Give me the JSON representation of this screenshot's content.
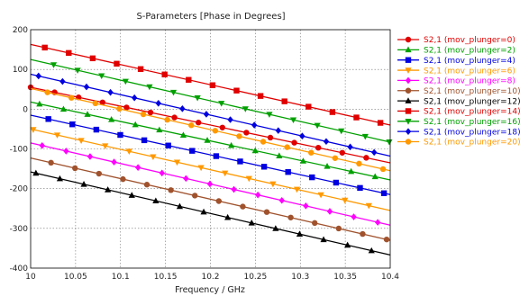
{
  "chart_data": {
    "type": "line",
    "title": "S-Parameters [Phase in Degrees]",
    "xlabel": "Frequency / GHz",
    "ylabel": "",
    "xlim": [
      10,
      10.4
    ],
    "ylim": [
      -400,
      200
    ],
    "xticks": [
      "10",
      "10.05",
      "10.1",
      "10.15",
      "10.2",
      "10.25",
      "10.3",
      "10.35",
      "10.4"
    ],
    "yticks": [
      "200",
      "100",
      "0",
      "-100",
      "-200",
      "-300",
      "-400"
    ],
    "grid": true,
    "legend_position": "right",
    "series": [
      {
        "name": "S2,1 (mov_plunger=0)",
        "color": "#e00000",
        "marker": "circle",
        "x": [
          10,
          10.4
        ],
        "y": [
          55,
          -135
        ]
      },
      {
        "name": "S2,1 (mov_plunger=2)",
        "color": "#00a000",
        "marker": "triangle-up",
        "x": [
          10,
          10.4
        ],
        "y": [
          18,
          -178
        ]
      },
      {
        "name": "S2,1 (mov_plunger=4)",
        "color": "#0000e0",
        "marker": "square",
        "x": [
          10,
          10.4
        ],
        "y": [
          -15,
          -215
        ]
      },
      {
        "name": "S2,1 (mov_plunger=6)",
        "color": "#ff9900",
        "marker": "triangle-down",
        "x": [
          10,
          10.4
        ],
        "y": [
          -50,
          -255
        ]
      },
      {
        "name": "S2,1 (mov_plunger=8)",
        "color": "#ff00ff",
        "marker": "diamond",
        "x": [
          10,
          10.4
        ],
        "y": [
          -85,
          -292
        ]
      },
      {
        "name": "S2,1 (mov_plunger=10)",
        "color": "#a0522d",
        "marker": "circle",
        "x": [
          10,
          10.4
        ],
        "y": [
          -123,
          -330
        ]
      },
      {
        "name": "S2,1 (mov_plunger=12)",
        "color": "#000000",
        "marker": "triangle-up",
        "x": [
          10,
          10.4
        ],
        "y": [
          -158,
          -367
        ]
      },
      {
        "name": "S2,1 (mov_plunger=14)",
        "color": "#e00000",
        "marker": "square",
        "x": [
          10,
          10.4
        ],
        "y": [
          163,
          -40
        ]
      },
      {
        "name": "S2,1 (mov_plunger=16)",
        "color": "#00a000",
        "marker": "triangle-down",
        "x": [
          10,
          10.4
        ],
        "y": [
          125,
          -83
        ]
      },
      {
        "name": "S2,1 (mov_plunger=18)",
        "color": "#0000e0",
        "marker": "diamond",
        "x": [
          10,
          10.4
        ],
        "y": [
          88,
          -118
        ]
      },
      {
        "name": "S2,1 (mov_plunger=20)",
        "color": "#ff9900",
        "marker": "circle",
        "x": [
          10,
          10.4
        ],
        "y": [
          52,
          -155
        ]
      }
    ]
  }
}
